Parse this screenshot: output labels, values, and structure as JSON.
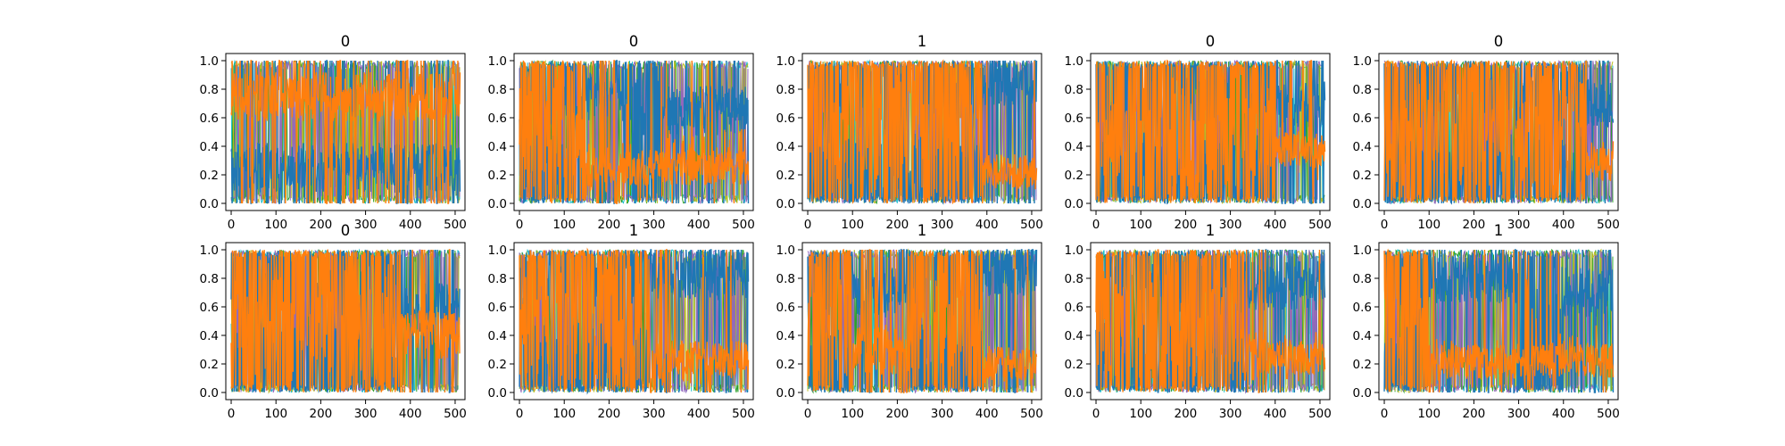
{
  "chart_data": {
    "type": "line",
    "layout": "2 rows x 5 columns of subplots",
    "grid": false,
    "x_ticks": [
      "0",
      "100",
      "200",
      "300",
      "400",
      "500"
    ],
    "y_ticks": [
      "0.0",
      "0.2",
      "0.4",
      "0.6",
      "0.8",
      "1.0"
    ],
    "xlim": [
      -12,
      522
    ],
    "ylim": [
      -0.05,
      1.05
    ],
    "series_colors": [
      "#1f77b4",
      "#ff7f0e",
      "#17becf",
      "#2ca02c",
      "#bcbd22",
      "#9467bd"
    ],
    "series_note": "Each panel overlays many series of 512 points, dominated by one blue series and one orange series; orange = 1 - blue in most columns; thin cyan/green/olive/purple traces near 0 and 1.",
    "panels": [
      {
        "title": "0",
        "blue_regime": [
          [
            0,
            512,
            0.25
          ]
        ],
        "orange_low_after": null
      },
      {
        "title": "0",
        "blue_regime": [
          [
            150,
            230,
            0.75
          ],
          [
            320,
            520,
            0.65
          ]
        ],
        "orange_low_after": [
          230,
          0.25
        ]
      },
      {
        "title": "1",
        "blue_regime": [
          [
            390,
            512,
            0.85
          ]
        ],
        "orange_low_after": [
          390,
          0.22
        ]
      },
      {
        "title": "0",
        "blue_regime": [
          [
            400,
            512,
            0.7
          ]
        ],
        "orange_low_after": [
          400,
          0.38
        ]
      },
      {
        "title": "0",
        "blue_regime": [
          [
            450,
            512,
            0.7
          ]
        ],
        "orange_low_after": [
          450,
          0.28
        ]
      },
      {
        "title": "0",
        "blue_regime": [
          [
            380,
            512,
            0.6
          ]
        ],
        "orange_low_after": null
      },
      {
        "title": "1",
        "blue_regime": [
          [
            290,
            512,
            0.82
          ]
        ],
        "orange_low_after": [
          340,
          0.24
        ]
      },
      {
        "title": "1",
        "blue_regime": [
          [
            100,
            220,
            0.7
          ],
          [
            390,
            512,
            0.85
          ]
        ],
        "orange_low_after": [
          400,
          0.2
        ]
      },
      {
        "title": "1",
        "blue_regime": [
          [
            330,
            512,
            0.75
          ]
        ],
        "orange_low_after": [
          380,
          0.25
        ]
      },
      {
        "title": "1",
        "blue_regime": [
          [
            100,
            300,
            0.8
          ],
          [
            400,
            512,
            0.7
          ]
        ],
        "orange_low_after": [
          120,
          0.22
        ]
      }
    ]
  }
}
